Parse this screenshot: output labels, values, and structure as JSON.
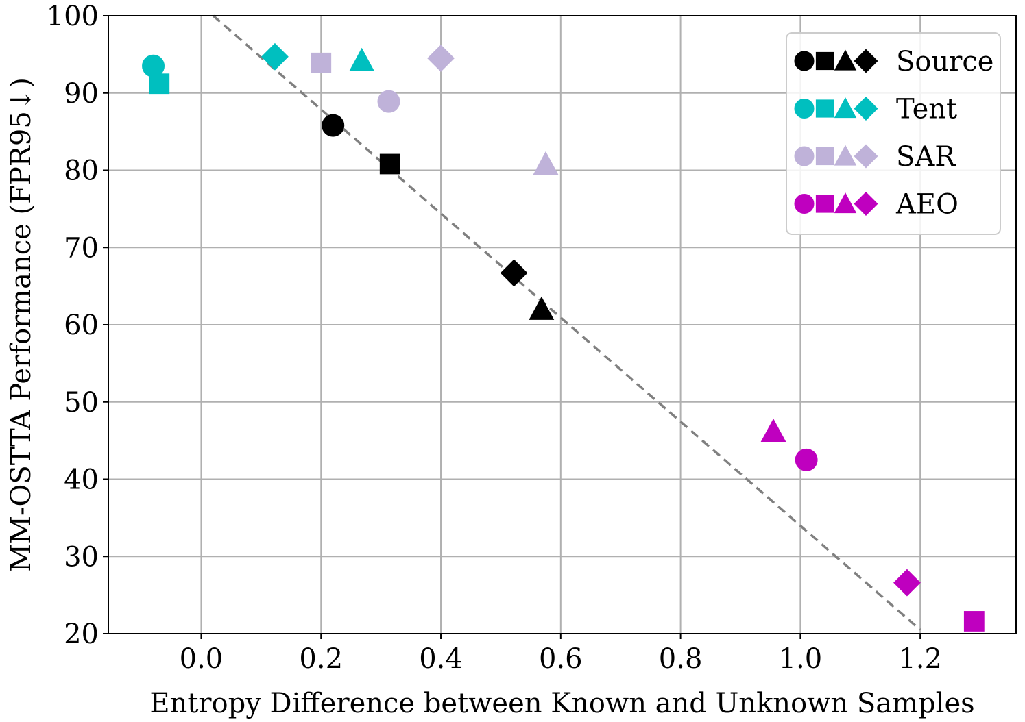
{
  "chart_data": {
    "type": "scatter",
    "title": "",
    "xlabel": "Entropy Difference between Known and Unknown Samples",
    "ylabel": "MM-OSTTA Performance (FPR95↓)",
    "xlim": [
      -0.155,
      1.36
    ],
    "ylim": [
      20,
      100
    ],
    "xticks": [
      0.0,
      0.2,
      0.4,
      0.6,
      0.8,
      1.0,
      1.2
    ],
    "xtick_labels": [
      "0.0",
      "0.2",
      "0.4",
      "0.6",
      "0.8",
      "1.0",
      "1.2"
    ],
    "yticks": [
      20,
      30,
      40,
      50,
      60,
      70,
      80,
      90,
      100
    ],
    "ytick_labels": [
      "20",
      "30",
      "40",
      "50",
      "60",
      "70",
      "80",
      "90",
      "100"
    ],
    "grid": true,
    "legend_position": "top-right",
    "marker_shapes": [
      "circle",
      "square",
      "triangle",
      "diamond"
    ],
    "trend_line": {
      "style": "dashed",
      "color": "#808080",
      "x": [
        0.02,
        1.2
      ],
      "y": [
        100,
        20.5
      ]
    },
    "series": [
      {
        "name": "Source",
        "color": "#000000",
        "points": [
          {
            "shape": "circle",
            "x": 0.22,
            "y": 85.8
          },
          {
            "shape": "square",
            "x": 0.315,
            "y": 80.8
          },
          {
            "shape": "triangle",
            "x": 0.568,
            "y": 62.0
          },
          {
            "shape": "diamond",
            "x": 0.522,
            "y": 66.7
          }
        ]
      },
      {
        "name": "Tent",
        "color": "#00bfbf",
        "points": [
          {
            "shape": "circle",
            "x": -0.08,
            "y": 93.5
          },
          {
            "shape": "square",
            "x": -0.07,
            "y": 91.2
          },
          {
            "shape": "triangle",
            "x": 0.268,
            "y": 94.2
          },
          {
            "shape": "diamond",
            "x": 0.123,
            "y": 94.7
          }
        ]
      },
      {
        "name": "SAR",
        "color": "#bfb2d9",
        "points": [
          {
            "shape": "circle",
            "x": 0.313,
            "y": 88.9
          },
          {
            "shape": "square",
            "x": 0.2,
            "y": 93.9
          },
          {
            "shape": "triangle",
            "x": 0.575,
            "y": 80.8
          },
          {
            "shape": "diamond",
            "x": 0.4,
            "y": 94.5
          }
        ]
      },
      {
        "name": "AEO",
        "color": "#bf00bf",
        "points": [
          {
            "shape": "circle",
            "x": 1.01,
            "y": 42.5
          },
          {
            "shape": "square",
            "x": 1.29,
            "y": 21.6
          },
          {
            "shape": "triangle",
            "x": 0.955,
            "y": 46.2
          },
          {
            "shape": "diamond",
            "x": 1.178,
            "y": 26.6
          }
        ]
      }
    ]
  }
}
